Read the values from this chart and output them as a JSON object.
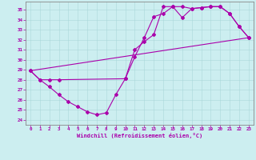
{
  "xlabel": "Windchill (Refroidissement éolien,°C)",
  "xlim": [
    -0.5,
    23.5
  ],
  "ylim": [
    23.5,
    35.8
  ],
  "yticks": [
    24,
    25,
    26,
    27,
    28,
    29,
    30,
    31,
    32,
    33,
    34,
    35
  ],
  "xticks": [
    0,
    1,
    2,
    3,
    4,
    5,
    6,
    7,
    8,
    9,
    10,
    11,
    12,
    13,
    14,
    15,
    16,
    17,
    18,
    19,
    20,
    21,
    22,
    23
  ],
  "bg_color": "#cceef0",
  "line_color": "#aa00aa",
  "line1_x": [
    0,
    1,
    2,
    3,
    4,
    5,
    6,
    7,
    8,
    9,
    10,
    11,
    12,
    13,
    14,
    15,
    16,
    17,
    18,
    19,
    20,
    21,
    22,
    23
  ],
  "line1_y": [
    28.9,
    28.0,
    27.3,
    26.5,
    25.8,
    25.3,
    24.8,
    24.5,
    24.7,
    26.5,
    28.1,
    30.3,
    32.2,
    34.3,
    34.6,
    35.3,
    34.2,
    35.1,
    35.2,
    35.3,
    35.3,
    34.6,
    33.3,
    32.2
  ],
  "line2_x": [
    0,
    1,
    2,
    3,
    10,
    11,
    12,
    13,
    14,
    15,
    16,
    17,
    18,
    19,
    20,
    21,
    22,
    23
  ],
  "line2_y": [
    28.9,
    28.0,
    28.0,
    28.0,
    28.1,
    31.0,
    31.8,
    32.5,
    35.3,
    35.3,
    35.3,
    35.1,
    35.2,
    35.3,
    35.3,
    34.6,
    33.3,
    32.2
  ],
  "line3_x": [
    0,
    23
  ],
  "line3_y": [
    28.9,
    32.2
  ]
}
